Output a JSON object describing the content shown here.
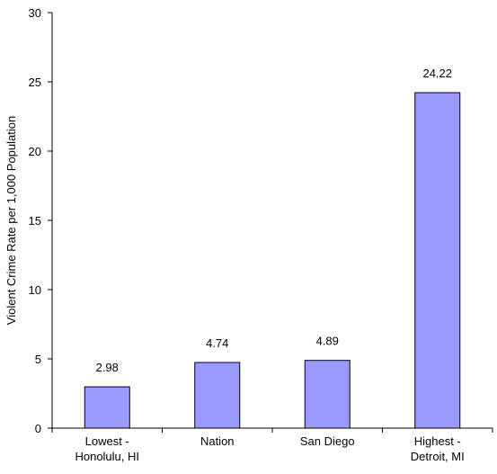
{
  "chart_data": {
    "type": "bar",
    "categories": [
      [
        "Lowest -",
        "Honolulu, HI"
      ],
      [
        "Nation"
      ],
      [
        "San Diego"
      ],
      [
        "Highest -",
        "Detroit, MI"
      ]
    ],
    "values": [
      2.98,
      4.74,
      4.89,
      24.22
    ],
    "data_labels": [
      "2.98",
      "4.74",
      "4.89",
      "24.22"
    ],
    "ylabel": "Violent Crime Rate per 1,000 Population",
    "xlabel": "",
    "ylim": [
      0,
      30
    ],
    "yticks": [
      0,
      5,
      10,
      15,
      20,
      25,
      30
    ],
    "grid": false,
    "legend": "none",
    "bar_color": "#9999ff",
    "bar_edge_color": "#000000"
  }
}
